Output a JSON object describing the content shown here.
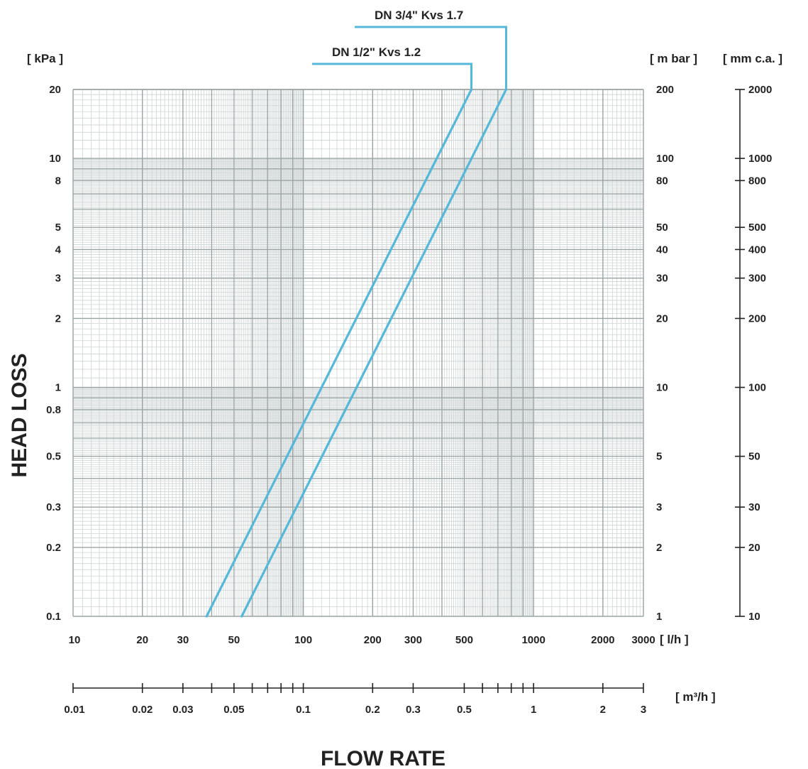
{
  "chart_data": {
    "type": "line",
    "title": "",
    "xlabel": "FLOW RATE",
    "ylabel": "HEAD LOSS",
    "x_unit": "[ l/h ]",
    "x2_unit": "[ m³/h ]",
    "y_unit_left": "[ kPa ]",
    "y_unit_right_1": "[ m bar ]",
    "y_unit_right_2": "[ mm c.a. ]",
    "x_scale": "log",
    "y_scale": "log",
    "xlim": [
      10,
      3000
    ],
    "ylim": [
      0.1,
      20
    ],
    "grid": true,
    "x_ticks": [
      10,
      20,
      30,
      50,
      100,
      200,
      300,
      500,
      1000,
      2000,
      3000
    ],
    "x_tick_labels": [
      "10",
      "20",
      "30",
      "50",
      "100",
      "200",
      "300",
      "500",
      "1000",
      "2000",
      "3000"
    ],
    "x2_ticks": [
      0.01,
      0.02,
      0.03,
      0.04,
      0.05,
      0.06,
      0.07,
      0.08,
      0.09,
      0.1,
      0.2,
      0.3,
      0.5,
      0.6,
      0.7,
      0.8,
      0.9,
      1,
      2,
      3
    ],
    "x2_labeled": [
      0.01,
      0.02,
      0.03,
      0.05,
      0.1,
      0.2,
      0.3,
      0.5,
      1,
      2,
      3
    ],
    "x2_tick_labels": [
      "0.01",
      "0.02",
      "0.03",
      "0.05",
      "0.1",
      "0.2",
      "0.3",
      "0.5",
      "1",
      "2",
      "3"
    ],
    "y_ticks": [
      0.1,
      0.2,
      0.3,
      0.5,
      0.8,
      1,
      2,
      3,
      4,
      5,
      8,
      10,
      20
    ],
    "y_tick_labels": [
      "0.1",
      "0.2",
      "0.3",
      "0.5",
      "0.8",
      "1",
      "2",
      "3",
      "4",
      "5",
      "8",
      "10",
      "20"
    ],
    "y2_tick_labels": [
      "1",
      "2",
      "3",
      "5",
      "",
      "10",
      "20",
      "30",
      "40",
      "50",
      "80",
      "100",
      "200"
    ],
    "y3_ticks_kpa": [
      0.1,
      0.2,
      0.3,
      0.5,
      1,
      2,
      3,
      4,
      5,
      8,
      10,
      20
    ],
    "y3_tick_labels": [
      "10",
      "20",
      "30",
      "50",
      "100",
      "200",
      "300",
      "400",
      "500",
      "800",
      "1000",
      "2000"
    ],
    "series": [
      {
        "name": "DN 1/2\" Kvs 1.2",
        "x": [
          38,
          537
        ],
        "y": [
          0.1,
          20
        ]
      },
      {
        "name": "DN 3/4\" Kvs 1.7",
        "x": [
          54,
          760
        ],
        "y": [
          0.1,
          20
        ]
      }
    ],
    "series_color": "#55b8d9"
  }
}
